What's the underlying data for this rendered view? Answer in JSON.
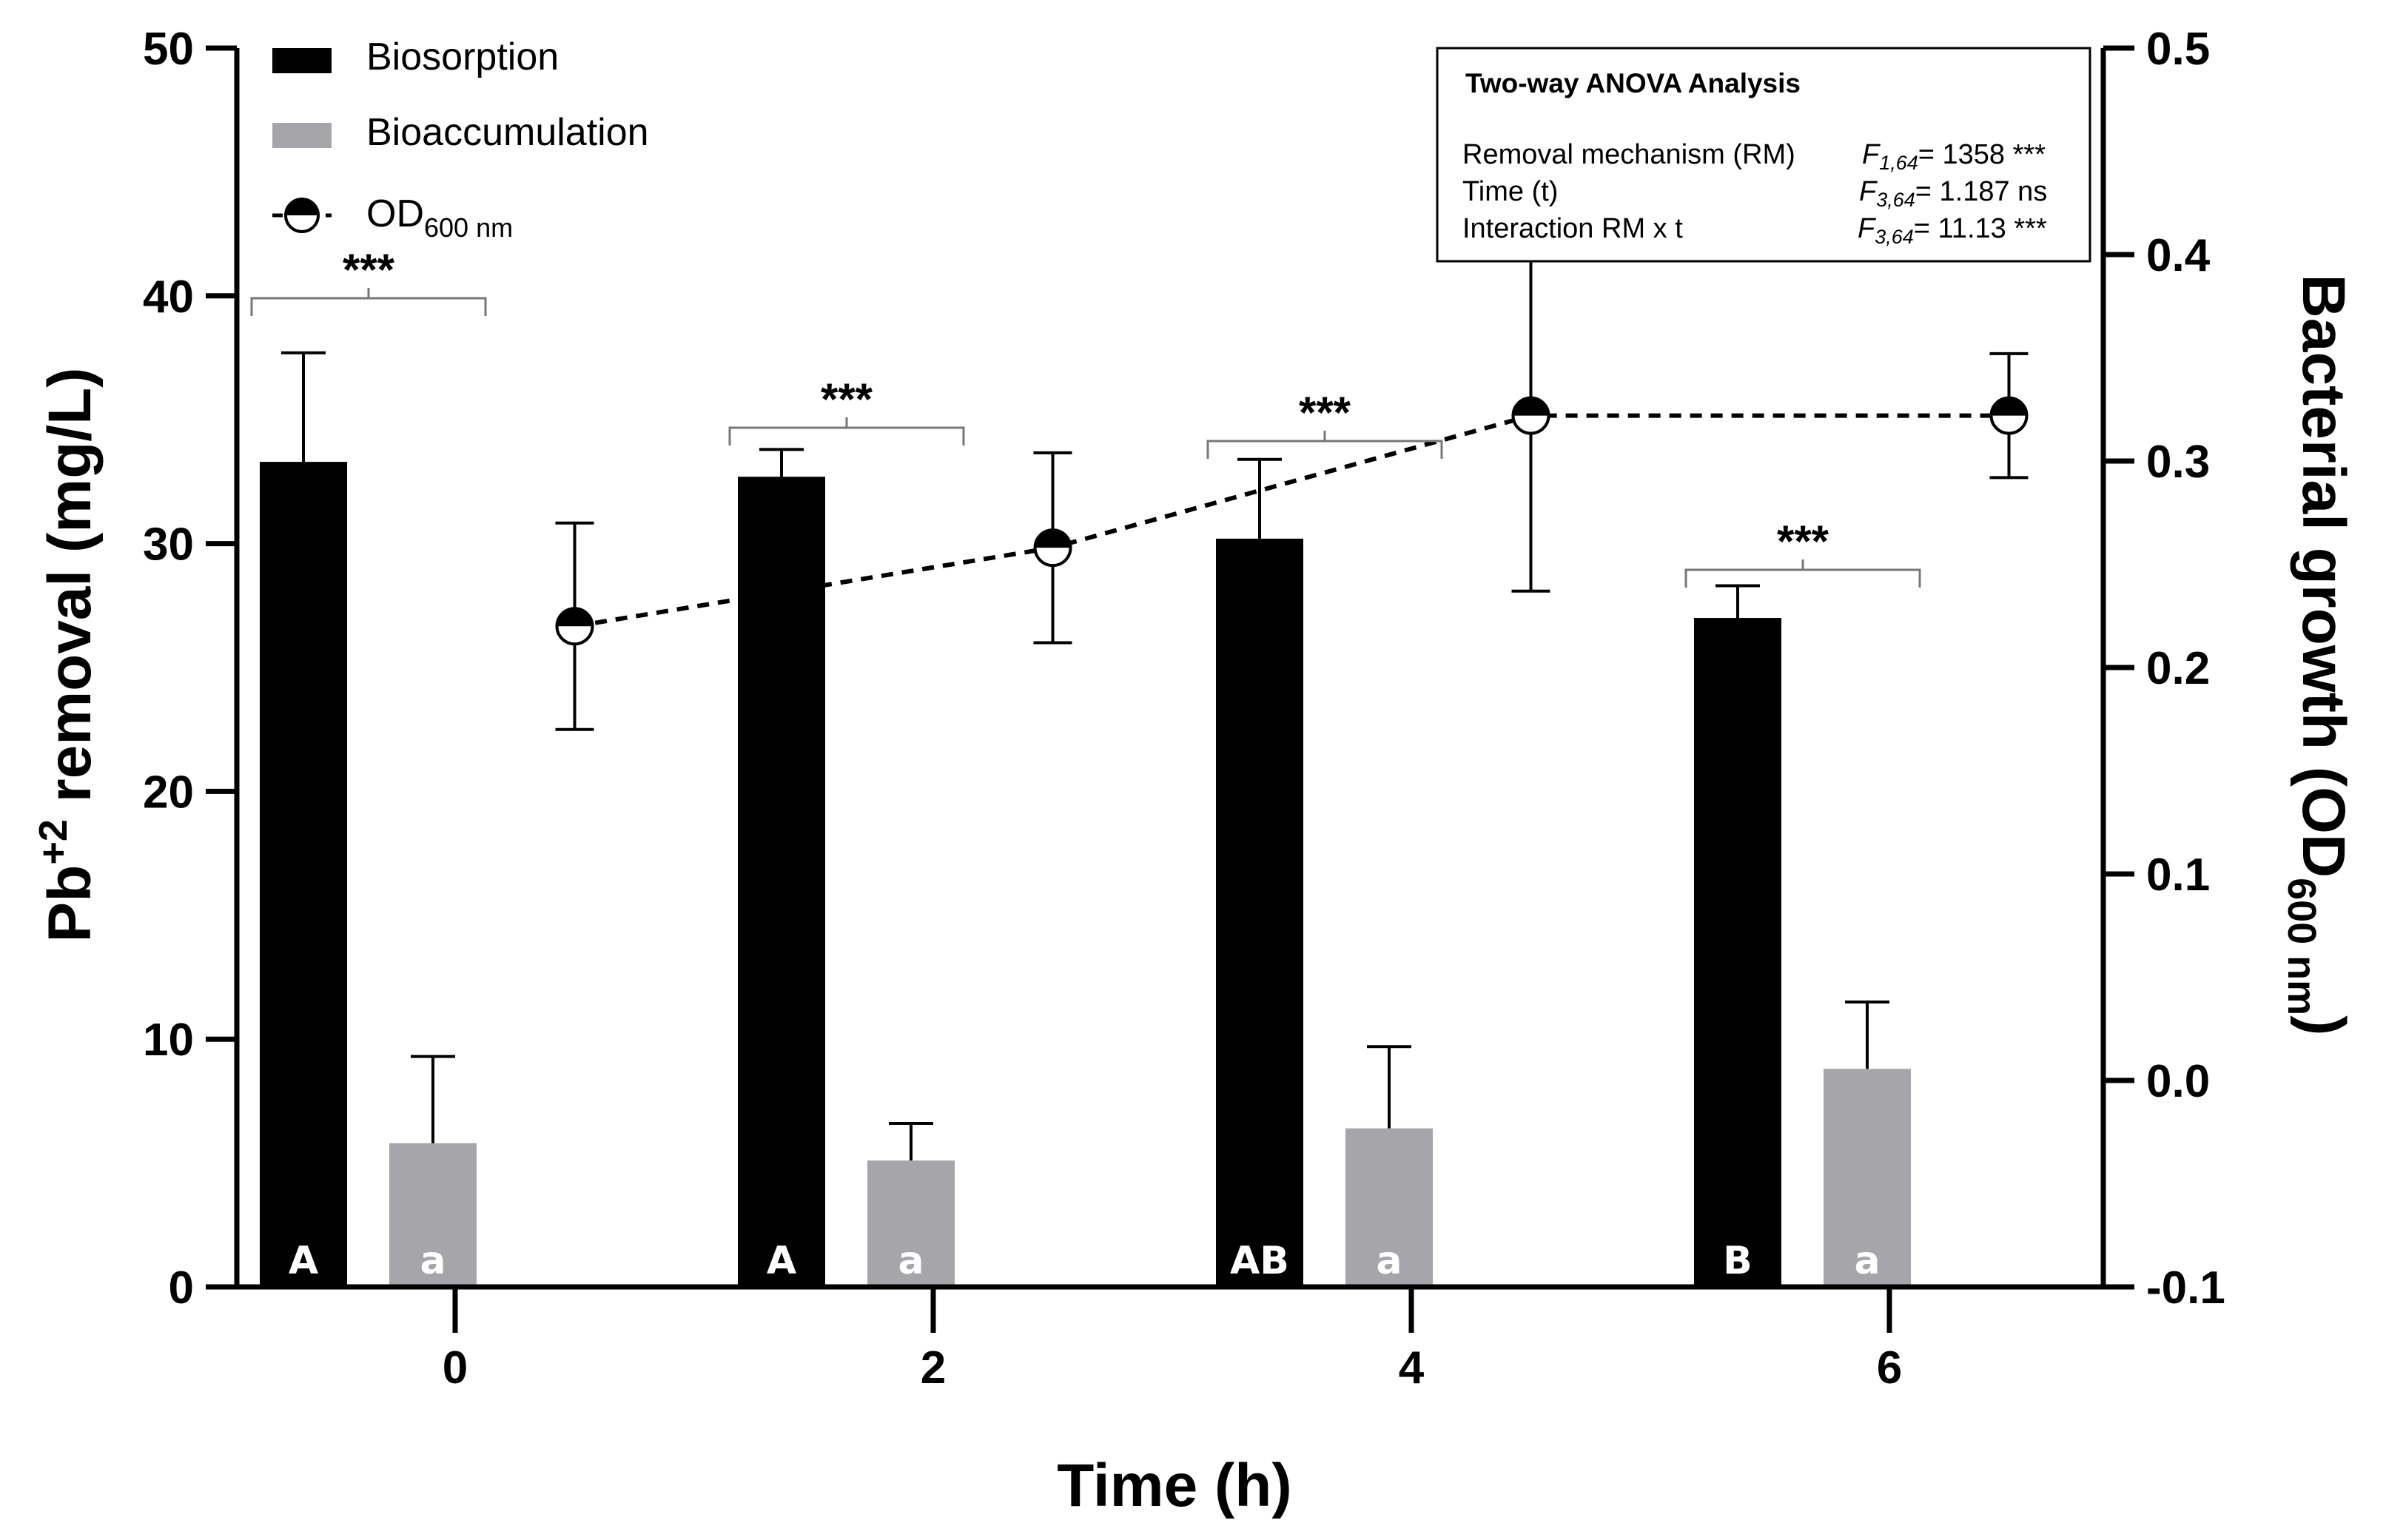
{
  "chart_data": {
    "type": "bar",
    "title": "",
    "xlabel": "Time (h)",
    "x": [
      0,
      2,
      4,
      6
    ],
    "categories": [
      "0",
      "2",
      "4",
      "6"
    ],
    "ylabel_left": {
      "main": "Pb",
      "sup": "+2",
      "rest": " removal (mg/L)"
    },
    "ylabel_right": {
      "main": "Bacterial growth (OD",
      "sub": "600 nm",
      "rest": ")"
    },
    "ylim_left": [
      0,
      50
    ],
    "yticks_left": [
      0,
      10,
      20,
      30,
      40,
      50
    ],
    "ylim_right": [
      -0.1,
      0.5
    ],
    "yticks_right": [
      -0.1,
      0.0,
      0.1,
      0.2,
      0.3,
      0.4,
      0.5
    ],
    "yticklabels_right": [
      "-0.1",
      "0.0",
      "0.1",
      "0.2",
      "0.3",
      "0.4",
      "0.5"
    ],
    "series": [
      {
        "name": "Biosorption",
        "kind": "bar",
        "color": "#000000",
        "values": [
          33.3,
          32.7,
          30.2,
          27.0
        ],
        "errors": [
          4.4,
          1.1,
          3.2,
          1.3
        ],
        "letters": [
          "A",
          "A",
          "AB",
          "B"
        ]
      },
      {
        "name": "Bioaccumulation",
        "kind": "bar",
        "color": "#a6a6aa",
        "values": [
          5.8,
          5.1,
          6.4,
          8.8
        ],
        "errors": [
          3.5,
          1.5,
          3.3,
          2.7
        ],
        "letters": [
          "a",
          "a",
          "a",
          "a"
        ]
      },
      {
        "name": "OD",
        "name_sub": "600 nm",
        "kind": "line",
        "axis": "right",
        "style": "dashed",
        "x_offset_h": [
          0.5,
          0.5,
          0.5,
          0.5
        ],
        "values": [
          0.22,
          0.258,
          0.322,
          0.322
        ],
        "errors": [
          0.05,
          0.046,
          0.085,
          0.03
        ]
      }
    ],
    "significance": [
      "***",
      "***",
      "***",
      "***"
    ],
    "anova": {
      "title": "Two-way ANOVA Analysis",
      "rows": [
        {
          "label": "Removal mechanism (RM)",
          "stat": "F",
          "df": "1,64",
          "value": "= 1358 ***"
        },
        {
          "label": "Time (t)",
          "stat": "F",
          "df": "3,64",
          "value": "= 1.187 ns"
        },
        {
          "label": "Interaction RM x t",
          "stat": "F",
          "df": "3,64",
          "value": "= 11.13 ***"
        }
      ]
    },
    "legend_position": "top-left"
  }
}
